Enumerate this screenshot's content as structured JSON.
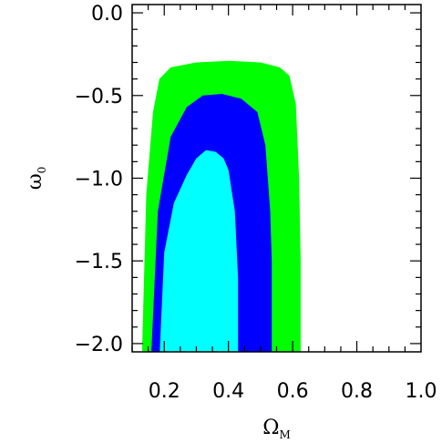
{
  "chart_data": {
    "type": "contour",
    "xlabel": "Ω",
    "xlabel_subscript": "M",
    "ylabel": "ω",
    "ylabel_subscript": "0",
    "xlim": [
      0.1,
      1.0
    ],
    "ylim": [
      -2.05,
      0.05
    ],
    "x_ticks": [
      0.2,
      0.4,
      0.6,
      0.8,
      1.0
    ],
    "x_tick_labels": [
      "0.2",
      "0.4",
      "0.6",
      "0.8",
      "1.0"
    ],
    "y_ticks": [
      0.0,
      -0.5,
      -1.0,
      -1.5,
      -2.0
    ],
    "y_tick_labels": [
      "0.0",
      "−0.5",
      "−1.0",
      "−1.5",
      "−2.0"
    ],
    "grid": false,
    "legend": "none",
    "regions": [
      {
        "level": "outer",
        "color": "#00ff00",
        "points": [
          [
            0.131,
            -2.05
          ],
          [
            0.144,
            -1.1
          ],
          [
            0.165,
            -0.6
          ],
          [
            0.185,
            -0.4
          ],
          [
            0.22,
            -0.33
          ],
          [
            0.3,
            -0.3
          ],
          [
            0.4,
            -0.29
          ],
          [
            0.5,
            -0.3
          ],
          [
            0.56,
            -0.33
          ],
          [
            0.59,
            -0.38
          ],
          [
            0.61,
            -0.55
          ],
          [
            0.62,
            -1.0
          ],
          [
            0.625,
            -1.5
          ],
          [
            0.625,
            -2.05
          ]
        ]
      },
      {
        "level": "middle",
        "color": "#0000ff",
        "points": [
          [
            0.16,
            -2.05
          ],
          [
            0.18,
            -1.2
          ],
          [
            0.22,
            -0.75
          ],
          [
            0.27,
            -0.57
          ],
          [
            0.32,
            -0.5
          ],
          [
            0.38,
            -0.49
          ],
          [
            0.44,
            -0.52
          ],
          [
            0.49,
            -0.6
          ],
          [
            0.515,
            -0.8
          ],
          [
            0.53,
            -1.2
          ],
          [
            0.535,
            -1.5
          ],
          [
            0.535,
            -2.05
          ]
        ]
      },
      {
        "level": "inner",
        "color": "#00ffff",
        "points": [
          [
            0.186,
            -2.05
          ],
          [
            0.2,
            -1.45
          ],
          [
            0.23,
            -1.15
          ],
          [
            0.27,
            -0.98
          ],
          [
            0.3,
            -0.88
          ],
          [
            0.33,
            -0.83
          ],
          [
            0.36,
            -0.84
          ],
          [
            0.385,
            -0.88
          ],
          [
            0.4,
            -0.95
          ],
          [
            0.42,
            -1.2
          ],
          [
            0.43,
            -1.6
          ],
          [
            0.43,
            -2.05
          ]
        ]
      }
    ]
  }
}
